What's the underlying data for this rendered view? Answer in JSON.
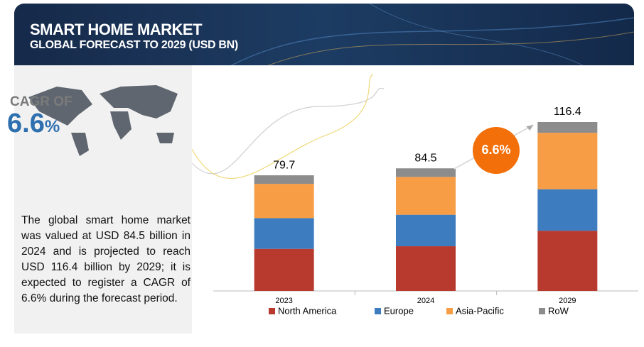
{
  "header": {
    "title": "SMART HOME MARKET",
    "subtitle": "GLOBAL FORECAST TO 2029 (USD BN)"
  },
  "summary": {
    "cagr_label": "CAGR OF",
    "cagr_value": "6.6",
    "cagr_unit": "%",
    "text": "The global smart home market was valued at USD 84.5 billion in 2024 and is projected to reach USD 116.4 billion by 2029; it is expected to register a CAGR of 6.6% during the forecast period."
  },
  "chart_data": {
    "type": "bar",
    "stacked": true,
    "categories": [
      "2023",
      "2024",
      "2029"
    ],
    "series": [
      {
        "name": "North America",
        "color": "#b83a2f",
        "values": [
          29.0,
          30.8,
          41.5
        ]
      },
      {
        "name": "Europe",
        "color": "#3d7cbf",
        "values": [
          21.2,
          21.7,
          28.6
        ]
      },
      {
        "name": "Asia-Pacific",
        "color": "#f79d45",
        "values": [
          23.6,
          26.1,
          38.9
        ]
      },
      {
        "name": "RoW",
        "color": "#8c8c8c",
        "values": [
          5.9,
          5.9,
          7.4
        ]
      }
    ],
    "totals": [
      79.7,
      84.5,
      116.4
    ],
    "badge": "6.6%"
  }
}
